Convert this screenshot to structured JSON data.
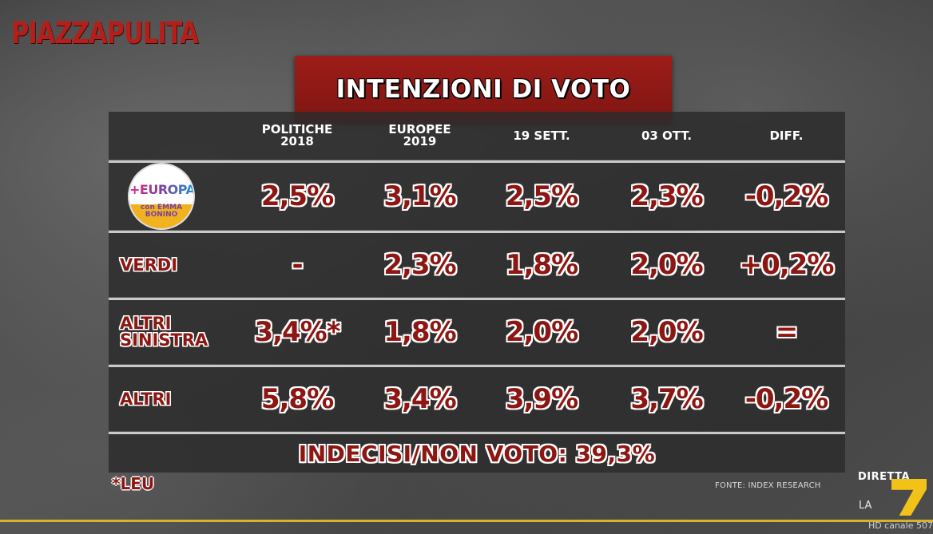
{
  "brand": "PIAZZAPULITA",
  "title": "INTENZIONI DI VOTO",
  "columns": [
    {
      "line1": "POLITICHE",
      "line2": "2018"
    },
    {
      "line1": "EUROPEE",
      "line2": "2019"
    },
    {
      "line1": "19 SETT.",
      "line2": ""
    },
    {
      "line1": "03 OTT.",
      "line2": ""
    },
    {
      "line1": "DIFF.",
      "line2": ""
    }
  ],
  "rows": [
    {
      "label_lines": [
        "+EUROPA",
        "con EMMA BONINO"
      ],
      "logo": "piu-europa-logo",
      "values": [
        "2,5%",
        "3,1%",
        "2,5%",
        "2,3%",
        "-0,2%"
      ]
    },
    {
      "label_lines": [
        "VERDI"
      ],
      "values": [
        "-",
        "2,3%",
        "1,8%",
        "2,0%",
        "+0,2%"
      ]
    },
    {
      "label_lines": [
        "ALTRI",
        "SINISTRA"
      ],
      "values": [
        "3,4%*",
        "1,8%",
        "2,0%",
        "2,0%",
        "="
      ]
    },
    {
      "label_lines": [
        "ALTRI"
      ],
      "values": [
        "5,8%",
        "3,4%",
        "3,9%",
        "3,7%",
        "-0,2%"
      ]
    }
  ],
  "logo_text": {
    "top": "EUROPA",
    "mid": "con EMMA",
    "bottom": "BONINO"
  },
  "footer_row": "INDECISI/NON VOTO: 39,3%",
  "footnote": "*LEU",
  "source": "FONTE: INDEX RESEARCH",
  "channel": {
    "line1": "DIRETTA",
    "line2": "LA",
    "number": "7",
    "hd": "HD canale 507"
  },
  "colors": {
    "accent_red": "#8c1612",
    "title_red": "#9e1d19",
    "gold": "#d6b32a"
  }
}
